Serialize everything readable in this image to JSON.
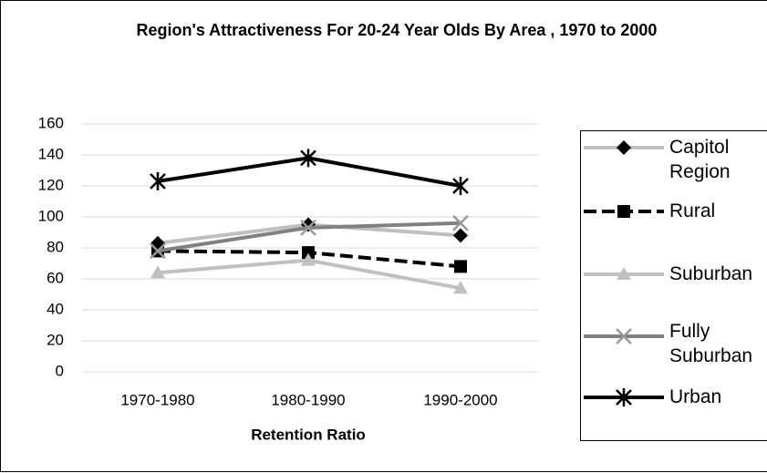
{
  "chart_data": {
    "type": "line",
    "title": "Region's Attractiveness For 20-24 Year Olds By Area , 1970 to 2000",
    "x_label": "Retention Ratio",
    "categories": [
      "1970-1980",
      "1980-1990",
      "1990-2000"
    ],
    "ylim": [
      0,
      160
    ],
    "yticks": [
      0,
      20,
      40,
      60,
      80,
      100,
      120,
      140,
      160
    ],
    "grid": true,
    "legend": "right",
    "series": [
      {
        "name": "Capitol Region",
        "color": "#bfbfbf",
        "marker": "diamond",
        "marker_color": "#000000",
        "dash": "solid",
        "values": [
          83,
          95,
          88
        ]
      },
      {
        "name": "Rural",
        "color": "#000000",
        "marker": "square",
        "marker_color": "#000000",
        "dash": "dashed",
        "values": [
          78,
          77,
          68
        ]
      },
      {
        "name": "Suburban",
        "color": "#c0c0c0",
        "marker": "triangle",
        "marker_color": "#c0c0c0",
        "dash": "solid",
        "values": [
          64,
          72,
          54
        ]
      },
      {
        "name": "Fully Suburban",
        "color": "#808080",
        "marker": "x",
        "marker_color": "#999999",
        "dash": "solid",
        "values": [
          78,
          93,
          96
        ]
      },
      {
        "name": "Urban",
        "color": "#000000",
        "marker": "star",
        "marker_color": "#000000",
        "dash": "solid",
        "values": [
          123,
          138,
          120
        ]
      }
    ]
  }
}
